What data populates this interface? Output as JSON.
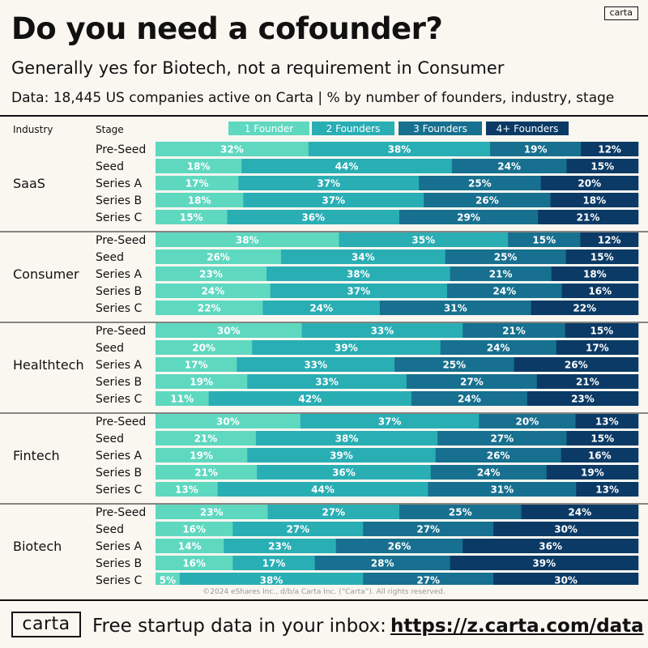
{
  "header": {
    "logo_small": "carta",
    "title": "Do you need a cofounder?",
    "subtitle": "Generally yes for Biotech, not a requirement in Consumer",
    "source": "Data: 18,445 US companies active on Carta | % by number of founders, industry, stage"
  },
  "footer": {
    "copyright": "©2024 eShares Inc., d/b/a Carta Inc. (“Carta”). All rights reserved.",
    "logo": "carta",
    "cta_text": "Free startup data in your inbox:",
    "url": "https://z.carta.com/data"
  },
  "chart_data": {
    "type": "bar",
    "orientation": "horizontal",
    "stacked": true,
    "percent": true,
    "column_headers": {
      "industry": "Industry",
      "stage": "Stage"
    },
    "legend_position": "top",
    "series": [
      {
        "name": "1 Founder",
        "color": "#5fd8c0",
        "label_color": "#ffffff"
      },
      {
        "name": "2 Founders",
        "color": "#29aeb4",
        "label_color": "#ffffff"
      },
      {
        "name": "3 Founders",
        "color": "#17708f",
        "label_color": "#ffffff"
      },
      {
        "name": "4+ Founders",
        "color": "#0b3a66",
        "label_color": "#ffffff"
      }
    ],
    "groups": [
      {
        "industry": "SaaS",
        "rows": [
          {
            "stage": "Pre-Seed",
            "values": [
              32,
              38,
              19,
              12
            ]
          },
          {
            "stage": "Seed",
            "values": [
              18,
              44,
              24,
              15
            ]
          },
          {
            "stage": "Series A",
            "values": [
              17,
              37,
              25,
              20
            ]
          },
          {
            "stage": "Series B",
            "values": [
              18,
              37,
              26,
              18
            ]
          },
          {
            "stage": "Series C",
            "values": [
              15,
              36,
              29,
              21
            ]
          }
        ]
      },
      {
        "industry": "Consumer",
        "rows": [
          {
            "stage": "Pre-Seed",
            "values": [
              38,
              35,
              15,
              12
            ]
          },
          {
            "stage": "Seed",
            "values": [
              26,
              34,
              25,
              15
            ]
          },
          {
            "stage": "Series A",
            "values": [
              23,
              38,
              21,
              18
            ]
          },
          {
            "stage": "Series B",
            "values": [
              24,
              37,
              24,
              16
            ]
          },
          {
            "stage": "Series C",
            "values": [
              22,
              24,
              31,
              22
            ]
          }
        ]
      },
      {
        "industry": "Healthtech",
        "rows": [
          {
            "stage": "Pre-Seed",
            "values": [
              30,
              33,
              21,
              15
            ]
          },
          {
            "stage": "Seed",
            "values": [
              20,
              39,
              24,
              17
            ]
          },
          {
            "stage": "Series A",
            "values": [
              17,
              33,
              25,
              26
            ]
          },
          {
            "stage": "Series B",
            "values": [
              19,
              33,
              27,
              21
            ]
          },
          {
            "stage": "Series C",
            "values": [
              11,
              42,
              24,
              23
            ]
          }
        ]
      },
      {
        "industry": "Fintech",
        "rows": [
          {
            "stage": "Pre-Seed",
            "values": [
              30,
              37,
              20,
              13
            ]
          },
          {
            "stage": "Seed",
            "values": [
              21,
              38,
              27,
              15
            ]
          },
          {
            "stage": "Series A",
            "values": [
              19,
              39,
              26,
              16
            ]
          },
          {
            "stage": "Series B",
            "values": [
              21,
              36,
              24,
              19
            ]
          },
          {
            "stage": "Series C",
            "values": [
              13,
              44,
              31,
              13
            ]
          }
        ]
      },
      {
        "industry": "Biotech",
        "rows": [
          {
            "stage": "Pre-Seed",
            "values": [
              23,
              27,
              25,
              24
            ]
          },
          {
            "stage": "Seed",
            "values": [
              16,
              27,
              27,
              30
            ]
          },
          {
            "stage": "Series A",
            "values": [
              14,
              23,
              26,
              36
            ]
          },
          {
            "stage": "Series B",
            "values": [
              16,
              17,
              28,
              39
            ]
          },
          {
            "stage": "Series C",
            "values": [
              5,
              38,
              27,
              30
            ]
          }
        ]
      }
    ]
  }
}
